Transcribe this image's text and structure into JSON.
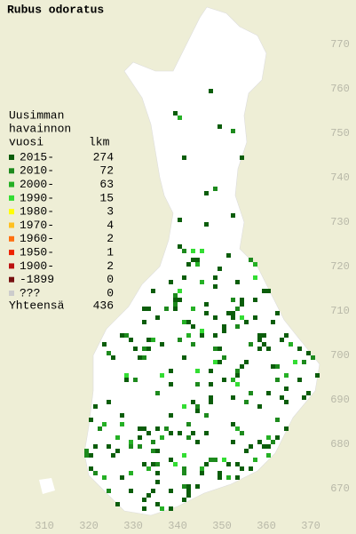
{
  "title": "Rubus odoratus",
  "legend": {
    "heading": [
      "Uusimman",
      "havainnon",
      "vuosi"
    ],
    "count_heading": "lkm",
    "rows": [
      {
        "label": "2015-",
        "count": 274,
        "color": "#0b5d0b"
      },
      {
        "label": "2010-",
        "count": 72,
        "color": "#1d8a1d"
      },
      {
        "label": "2000-",
        "count": 63,
        "color": "#25b025"
      },
      {
        "label": "1990-",
        "count": 15,
        "color": "#33dd33"
      },
      {
        "label": "1980-",
        "count": 3,
        "color": "#ffff00"
      },
      {
        "label": "1970-",
        "count": 4,
        "color": "#ffc020"
      },
      {
        "label": "1960-",
        "count": 2,
        "color": "#ff7010"
      },
      {
        "label": "1950-",
        "count": 1,
        "color": "#ee2200"
      },
      {
        "label": "1900-",
        "count": 2,
        "color": "#bb1111"
      },
      {
        "label": "-1899",
        "count": 0,
        "color": "#771111"
      },
      {
        "label": "???",
        "count": 0,
        "color": "#cccccc"
      }
    ],
    "total_label": "Yhteensä",
    "total": 436
  },
  "grid": {
    "x_labels": [
      310,
      320,
      330,
      340,
      350,
      360,
      370
    ],
    "y_labels": [
      670,
      680,
      690,
      700,
      710,
      720,
      730,
      740,
      750,
      760,
      770
    ]
  }
}
